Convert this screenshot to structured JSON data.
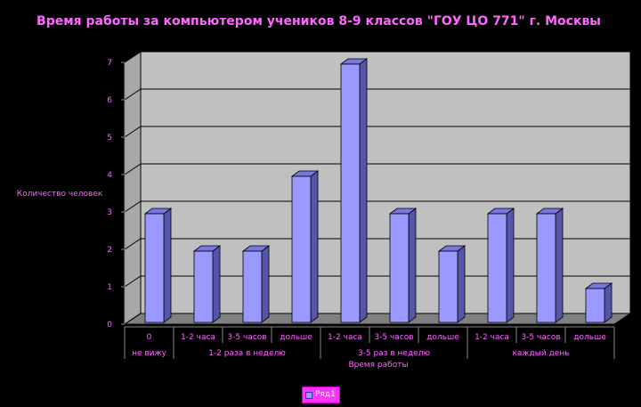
{
  "chart_data": {
    "type": "bar",
    "title": "Время работы за компьютером учеников 8-9 классов \"ГОУ ЦО 771\" г. Москвы",
    "xlabel": "Время работы",
    "ylabel": "Количество человек",
    "ylim": [
      0,
      7
    ],
    "yticks": [
      "0",
      "1",
      "2",
      "3",
      "4",
      "5",
      "6",
      "7"
    ],
    "categories": [
      "0",
      "1-2 часа",
      "3-5 часов",
      "дольше",
      "1-2 часа",
      "3-5 часов",
      "дольше",
      "1-2 часа",
      "3-5 часов",
      "дольше"
    ],
    "groups": [
      {
        "label": "не вижу",
        "count": 1
      },
      {
        "label": "1-2 раза в неделю",
        "count": 3
      },
      {
        "label": "3-5 раз в неделю",
        "count": 3
      },
      {
        "label": "каждый день",
        "count": 3
      }
    ],
    "series": [
      {
        "name": "Ряд1",
        "values": [
          3,
          2,
          2,
          4,
          7,
          3,
          2,
          3,
          3,
          1
        ]
      }
    ],
    "grid": true,
    "legend": "bottom",
    "colors": {
      "bar": "#9999ff",
      "bar_side": "#5555aa",
      "bar_top": "#7777dd",
      "wall": "#c0c0c0",
      "floor": "#808080",
      "text": "#ff66ff",
      "legend_bg": "#ff33ff"
    }
  }
}
